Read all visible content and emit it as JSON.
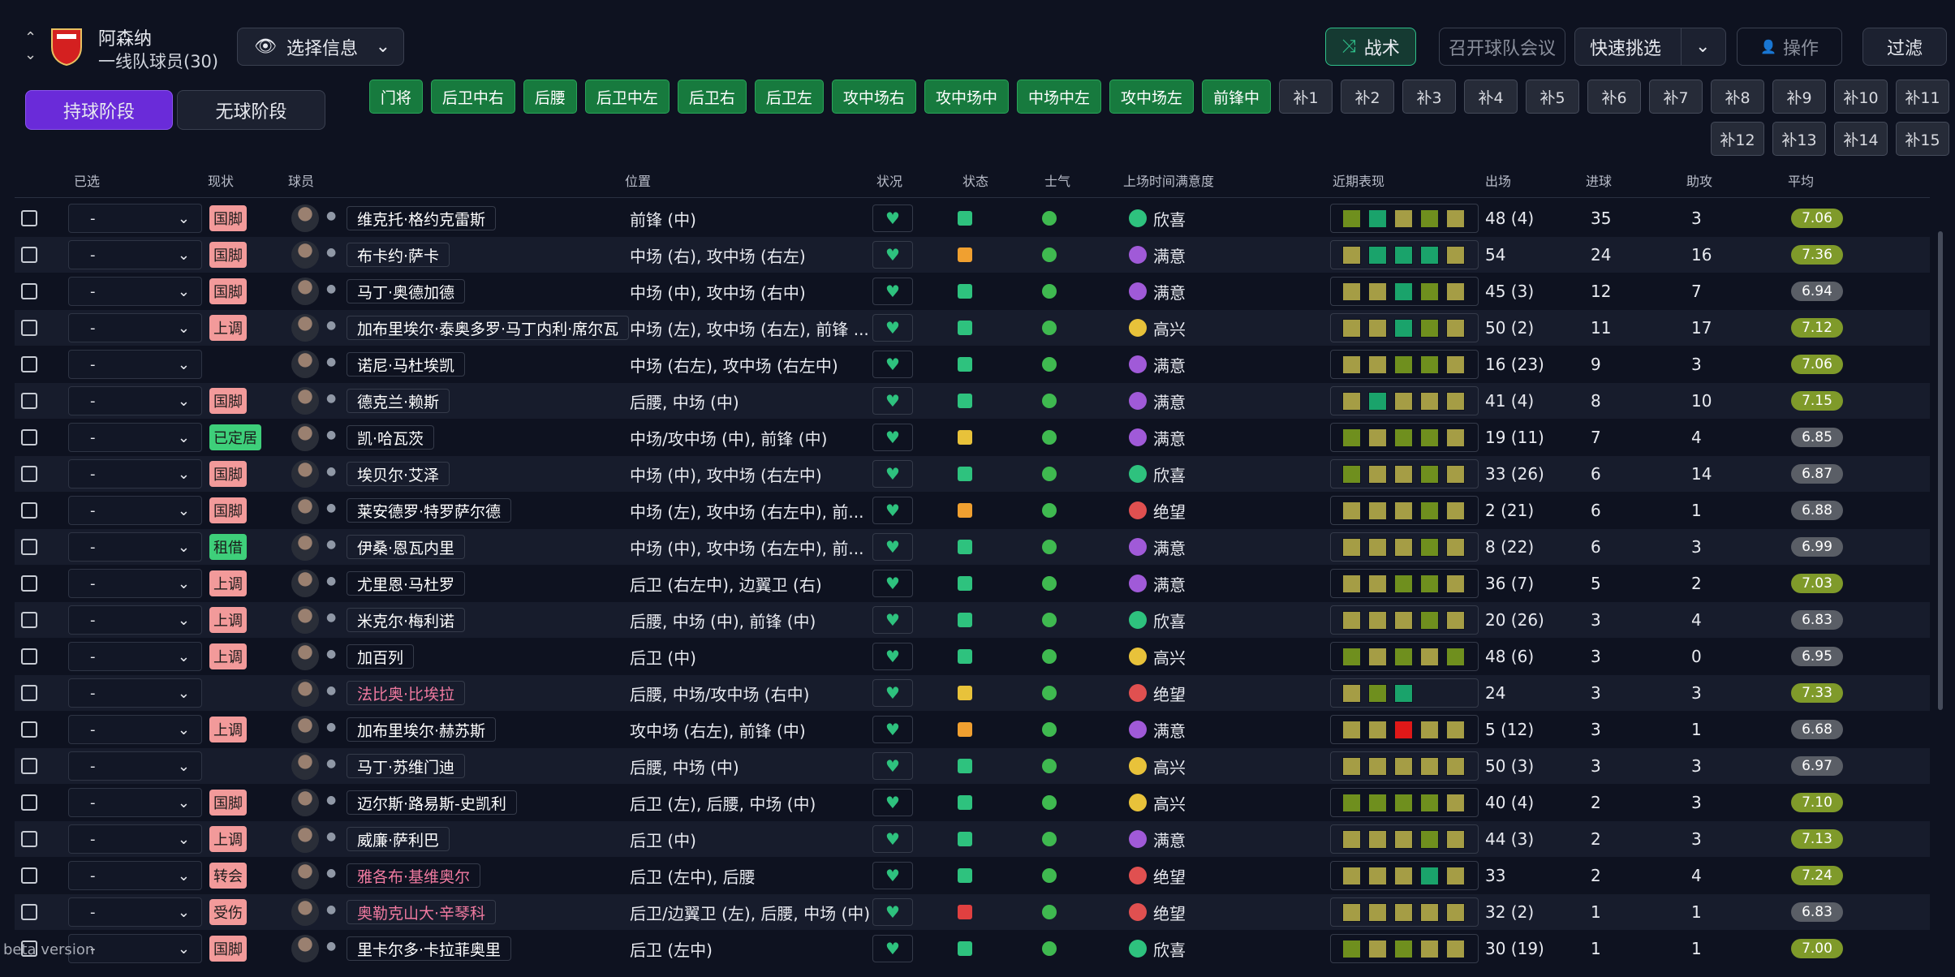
{
  "header": {
    "club": "阿森纳",
    "squad": "一线队球员(30)",
    "select": "选择信息",
    "buttons": [
      "战术",
      "召开球队会议",
      "快速挑选",
      "操作",
      "过滤"
    ]
  },
  "phases": [
    "持球阶段",
    "无球阶段"
  ],
  "positions": [
    "门将",
    "后卫中右",
    "后腰",
    "后卫中左",
    "后卫右",
    "后卫左",
    "攻中场右",
    "攻中场中",
    "中场中左",
    "攻中场左",
    "前锋中"
  ],
  "subs": [
    "补1",
    "补2",
    "补3",
    "补4",
    "补5",
    "补6",
    "补7",
    "补8",
    "补9",
    "补10",
    "补11",
    "补12",
    "补13",
    "补14",
    "补15"
  ],
  "table": {
    "columns": [
      "已选",
      "现状",
      "球员",
      "位置",
      "状况",
      "状态",
      "士气",
      "上场时间满意度",
      "近期表现",
      "出场",
      "进球",
      "助攻",
      "平均"
    ],
    "rows": [
      {
        "sel": "-",
        "tag": "国脚",
        "tag_color": "#f29a9a",
        "name": "维克托·格约克雷斯",
        "name_color": "#ffffff",
        "pos": "前锋 (中)",
        "state_color": "#2ec27e",
        "morale": "欣喜",
        "morale_color": "#2ec27e",
        "form": [
          "#6f8f1e",
          "#1aa36b",
          "#a59d45",
          "#6f8f1e",
          "#a59d45"
        ],
        "apps": "48 (4)",
        "goals": 35,
        "assists": 3,
        "rating": "7.06",
        "rating_color": "#7f9a2a"
      },
      {
        "sel": "-",
        "tag": "国脚",
        "tag_color": "#f29a9a",
        "name": "布卡约·萨卡",
        "name_color": "#ffffff",
        "pos": "中场 (右), 攻中场 (右左)",
        "state_color": "#f0a030",
        "morale": "满意",
        "morale_color": "#a05ad8",
        "form": [
          "#a59d45",
          "#1aa36b",
          "#1aa36b",
          "#1aa36b",
          "#a59d45"
        ],
        "apps": "54",
        "goals": 24,
        "assists": 16,
        "rating": "7.36",
        "rating_color": "#7f9a2a"
      },
      {
        "sel": "-",
        "tag": "国脚",
        "tag_color": "#f29a9a",
        "name": "马丁·奥德加德",
        "name_color": "#ffffff",
        "pos": "中场 (中), 攻中场 (右中)",
        "state_color": "#2ec27e",
        "morale": "满意",
        "morale_color": "#a05ad8",
        "form": [
          "#a59d45",
          "#a59d45",
          "#1aa36b",
          "#6f8f1e",
          "#a59d45"
        ],
        "apps": "45 (3)",
        "goals": 12,
        "assists": 7,
        "rating": "6.94",
        "rating_color": "#5a5e66"
      },
      {
        "sel": "-",
        "tag": "上调",
        "tag_color": "#f29a9a",
        "name": "加布里埃尔·泰奥多罗·马丁内利·席尔瓦",
        "name_color": "#ffffff",
        "pos": "中场 (左), 攻中场 (右左), 前锋 ...",
        "state_color": "#2ec27e",
        "morale": "高兴",
        "morale_color": "#e8c23a",
        "form": [
          "#a59d45",
          "#a59d45",
          "#1aa36b",
          "#6f8f1e",
          "#a59d45"
        ],
        "apps": "50 (2)",
        "goals": 11,
        "assists": 17,
        "rating": "7.12",
        "rating_color": "#7f9a2a"
      },
      {
        "sel": "-",
        "tag": null,
        "tag_color": null,
        "name": "诺尼·马杜埃凯",
        "name_color": "#ffffff",
        "pos": "中场 (右左), 攻中场 (右左中)",
        "state_color": "#2ec27e",
        "morale": "满意",
        "morale_color": "#a05ad8",
        "form": [
          "#a59d45",
          "#a59d45",
          "#6f8f1e",
          "#6f8f1e",
          "#a59d45"
        ],
        "apps": "16 (23)",
        "goals": 9,
        "assists": 3,
        "rating": "7.06",
        "rating_color": "#7f9a2a"
      },
      {
        "sel": "-",
        "tag": "国脚",
        "tag_color": "#f29a9a",
        "name": "德克兰·赖斯",
        "name_color": "#ffffff",
        "pos": "后腰, 中场 (中)",
        "state_color": "#2ec27e",
        "morale": "满意",
        "morale_color": "#a05ad8",
        "form": [
          "#a59d45",
          "#1aa36b",
          "#a59d45",
          "#a59d45",
          "#a59d45"
        ],
        "apps": "41 (4)",
        "goals": 8,
        "assists": 10,
        "rating": "7.15",
        "rating_color": "#7f9a2a"
      },
      {
        "sel": "-",
        "tag": "已定居",
        "tag_color": "#3ecf7a",
        "name": "凯·哈瓦茨",
        "name_color": "#ffffff",
        "pos": "中场/攻中场 (中), 前锋 (中)",
        "state_color": "#e8c23a",
        "morale": "满意",
        "morale_color": "#a05ad8",
        "form": [
          "#6f8f1e",
          "#a59d45",
          "#6f8f1e",
          "#6f8f1e",
          "#a59d45"
        ],
        "apps": "19 (11)",
        "goals": 7,
        "assists": 4,
        "rating": "6.85",
        "rating_color": "#5a5e66"
      },
      {
        "sel": "-",
        "tag": "国脚",
        "tag_color": "#f29a9a",
        "name": "埃贝尔·艾泽",
        "name_color": "#ffffff",
        "pos": "中场 (中), 攻中场 (右左中)",
        "state_color": "#2ec27e",
        "morale": "欣喜",
        "morale_color": "#2ec27e",
        "form": [
          "#6f8f1e",
          "#a59d45",
          "#a59d45",
          "#6f8f1e",
          "#a59d45"
        ],
        "apps": "33 (26)",
        "goals": 6,
        "assists": 14,
        "rating": "6.87",
        "rating_color": "#5a5e66"
      },
      {
        "sel": "-",
        "tag": "国脚",
        "tag_color": "#f29a9a",
        "name": "莱安德罗·特罗萨尔德",
        "name_color": "#ffffff",
        "pos": "中场 (左), 攻中场 (右左中), 前...",
        "state_color": "#f0a030",
        "morale": "绝望",
        "morale_color": "#e05050",
        "form": [
          "#a59d45",
          "#a59d45",
          "#a59d45",
          "#6f8f1e",
          "#a59d45"
        ],
        "apps": "2 (21)",
        "goals": 6,
        "assists": 1,
        "rating": "6.88",
        "rating_color": "#5a5e66"
      },
      {
        "sel": "-",
        "tag": "租借",
        "tag_color": "#3ecf7a",
        "name": "伊桑·恩瓦内里",
        "name_color": "#ffffff",
        "pos": "中场 (中), 攻中场 (右左中), 前...",
        "state_color": "#2ec27e",
        "morale": "满意",
        "morale_color": "#a05ad8",
        "form": [
          "#a59d45",
          "#a59d45",
          "#a59d45",
          "#6f8f1e",
          "#a59d45"
        ],
        "apps": "8 (22)",
        "goals": 6,
        "assists": 3,
        "rating": "6.99",
        "rating_color": "#5a5e66"
      },
      {
        "sel": "-",
        "tag": "上调",
        "tag_color": "#f29a9a",
        "name": "尤里恩·马杜罗",
        "name_color": "#ffffff",
        "pos": "后卫 (右左中), 边翼卫 (右)",
        "state_color": "#2ec27e",
        "morale": "满意",
        "morale_color": "#a05ad8",
        "form": [
          "#a59d45",
          "#a59d45",
          "#6f8f1e",
          "#6f8f1e",
          "#a59d45"
        ],
        "apps": "36 (7)",
        "goals": 5,
        "assists": 2,
        "rating": "7.03",
        "rating_color": "#7f9a2a"
      },
      {
        "sel": "-",
        "tag": "上调",
        "tag_color": "#f29a9a",
        "name": "米克尔·梅利诺",
        "name_color": "#ffffff",
        "pos": "后腰, 中场 (中), 前锋 (中)",
        "state_color": "#2ec27e",
        "morale": "欣喜",
        "morale_color": "#2ec27e",
        "form": [
          "#a59d45",
          "#a59d45",
          "#a59d45",
          "#6f8f1e",
          "#a59d45"
        ],
        "apps": "20 (26)",
        "goals": 3,
        "assists": 4,
        "rating": "6.83",
        "rating_color": "#5a5e66"
      },
      {
        "sel": "-",
        "tag": "上调",
        "tag_color": "#f29a9a",
        "name": "加百列",
        "name_color": "#ffffff",
        "pos": "后卫 (中)",
        "state_color": "#2ec27e",
        "morale": "高兴",
        "morale_color": "#e8c23a",
        "form": [
          "#6f8f1e",
          "#a59d45",
          "#6f8f1e",
          "#a59d45",
          "#6f8f1e"
        ],
        "apps": "48 (6)",
        "goals": 3,
        "assists": 0,
        "rating": "6.95",
        "rating_color": "#5a5e66"
      },
      {
        "sel": "-",
        "tag": null,
        "tag_color": null,
        "name": "法比奥·比埃拉",
        "name_color": "#f07aa0",
        "pos": "后腰, 中场/攻中场 (右中)",
        "state_color": "#e8c23a",
        "morale": "绝望",
        "morale_color": "#e05050",
        "form": [
          "#a59d45",
          "#6f8f1e",
          "#1aa36b"
        ],
        "apps": "24",
        "goals": 3,
        "assists": 3,
        "rating": "7.33",
        "rating_color": "#7f9a2a"
      },
      {
        "sel": "-",
        "tag": "上调",
        "tag_color": "#f29a9a",
        "name": "加布里埃尔·赫苏斯",
        "name_color": "#ffffff",
        "pos": "攻中场 (右左), 前锋 (中)",
        "state_color": "#f0a030",
        "morale": "满意",
        "morale_color": "#a05ad8",
        "form": [
          "#a59d45",
          "#a59d45",
          "#e01818",
          "#a59d45",
          "#a59d45"
        ],
        "apps": "5 (12)",
        "goals": 3,
        "assists": 1,
        "rating": "6.68",
        "rating_color": "#5a5e66"
      },
      {
        "sel": "-",
        "tag": null,
        "tag_color": null,
        "name": "马丁·苏维门迪",
        "name_color": "#ffffff",
        "pos": "后腰, 中场 (中)",
        "state_color": "#2ec27e",
        "morale": "高兴",
        "morale_color": "#e8c23a",
        "form": [
          "#a59d45",
          "#a59d45",
          "#a59d45",
          "#a59d45",
          "#a59d45"
        ],
        "apps": "50 (3)",
        "goals": 3,
        "assists": 3,
        "rating": "6.97",
        "rating_color": "#5a5e66"
      },
      {
        "sel": "-",
        "tag": "国脚",
        "tag_color": "#f29a9a",
        "name": "迈尔斯·路易斯-史凯利",
        "name_color": "#ffffff",
        "pos": "后卫 (左), 后腰, 中场 (中)",
        "state_color": "#2ec27e",
        "morale": "高兴",
        "morale_color": "#e8c23a",
        "form": [
          "#6f8f1e",
          "#6f8f1e",
          "#6f8f1e",
          "#6f8f1e",
          "#a59d45"
        ],
        "apps": "40 (4)",
        "goals": 2,
        "assists": 3,
        "rating": "7.10",
        "rating_color": "#7f9a2a"
      },
      {
        "sel": "-",
        "tag": "上调",
        "tag_color": "#f29a9a",
        "name": "威廉·萨利巴",
        "name_color": "#ffffff",
        "pos": "后卫 (中)",
        "state_color": "#2ec27e",
        "morale": "满意",
        "morale_color": "#a05ad8",
        "form": [
          "#a59d45",
          "#a59d45",
          "#a59d45",
          "#6f8f1e",
          "#a59d45"
        ],
        "apps": "44 (3)",
        "goals": 2,
        "assists": 3,
        "rating": "7.13",
        "rating_color": "#7f9a2a"
      },
      {
        "sel": "-",
        "tag": "转会",
        "tag_color": "#f29a9a",
        "name": "雅各布·基维奥尔",
        "name_color": "#f07aa0",
        "pos": "后卫 (左中), 后腰",
        "state_color": "#2ec27e",
        "morale": "绝望",
        "morale_color": "#e05050",
        "form": [
          "#a59d45",
          "#a59d45",
          "#a59d45",
          "#1aa36b",
          "#a59d45"
        ],
        "apps": "33",
        "goals": 2,
        "assists": 4,
        "rating": "7.24",
        "rating_color": "#7f9a2a"
      },
      {
        "sel": "-",
        "tag": "受伤",
        "tag_color": "#f29a9a",
        "name": "奥勒克山大·辛琴科",
        "name_color": "#f07aa0",
        "pos": "后卫/边翼卫 (左), 后腰, 中场 (中)",
        "state_color": "#e04040",
        "morale": "绝望",
        "morale_color": "#e05050",
        "form": [
          "#a59d45",
          "#a59d45",
          "#a59d45",
          "#a59d45",
          "#a59d45"
        ],
        "apps": "32 (2)",
        "goals": 1,
        "assists": 1,
        "rating": "6.83",
        "rating_color": "#5a5e66"
      },
      {
        "sel": "-",
        "tag": "国脚",
        "tag_color": "#f29a9a",
        "name": "里卡尔多·卡拉菲奥里",
        "name_color": "#ffffff",
        "pos": "后卫 (左中)",
        "state_color": "#2ec27e",
        "morale": "欣喜",
        "morale_color": "#2ec27e",
        "form": [
          "#6f8f1e",
          "#a59d45",
          "#6f8f1e",
          "#a59d45",
          "#a59d45"
        ],
        "apps": "30 (19)",
        "goals": 1,
        "assists": 1,
        "rating": "7.00",
        "rating_color": "#7f9a2a"
      }
    ]
  },
  "footer": "beta version"
}
